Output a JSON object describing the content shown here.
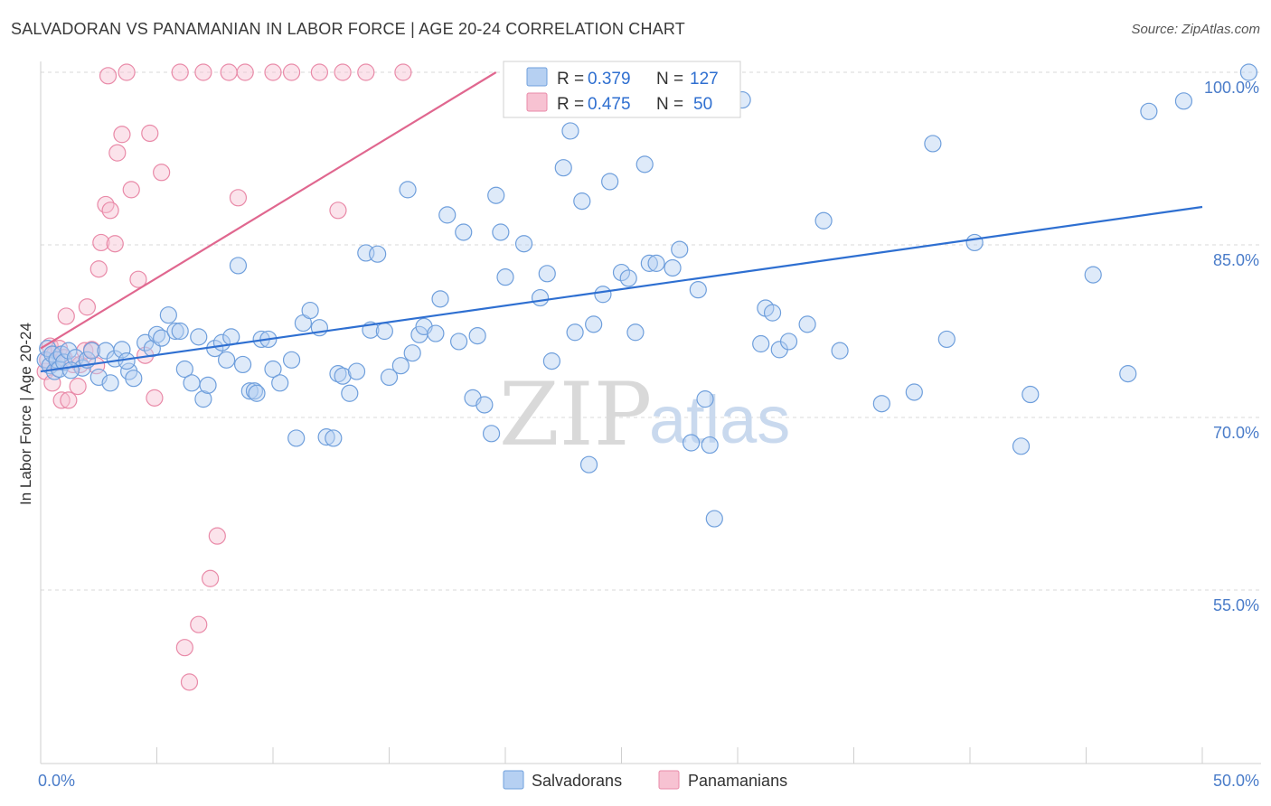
{
  "title": "SALVADORAN VS PANAMANIAN IN LABOR FORCE | AGE 20-24 CORRELATION CHART",
  "source": "Source: ZipAtlas.com",
  "watermark": {
    "zip": "ZIP",
    "atlas": "atlas"
  },
  "colors": {
    "blue": "#6f9fdc",
    "blue_fill": "#b6d0f2",
    "blue_line": "#2e6fd1",
    "pink": "#e98aa8",
    "pink_fill": "#f7c2d2",
    "pink_line": "#e0678f",
    "grid": "#d8d8d8",
    "tick_label": "#4a7cc9"
  },
  "legend": {
    "rows": [
      {
        "r_label": "R = ",
        "r_value": "0.379",
        "n_label": "N = ",
        "n_value": "127"
      },
      {
        "r_label": "R = ",
        "r_value": "0.475",
        "n_label": "N = ",
        "n_value": "50"
      }
    ]
  },
  "bottom_legend": [
    "Salvadorans",
    "Panamanians"
  ],
  "chart_data": {
    "type": "scatter",
    "title": "SALVADORAN VS PANAMANIAN IN LABOR FORCE | AGE 20-24 CORRELATION CHART",
    "xlabel": "",
    "ylabel": "In Labor Force | Age 20-24",
    "xlim": [
      0,
      50
    ],
    "ylim": [
      40,
      101
    ],
    "x_ticks": [
      "0.0%",
      "50.0%"
    ],
    "y_ticks": [
      {
        "value": 100,
        "label": "100.0%"
      },
      {
        "value": 85,
        "label": "85.0%"
      },
      {
        "value": 70,
        "label": "70.0%"
      },
      {
        "value": 55,
        "label": "55.0%"
      }
    ],
    "grid": true,
    "legend_position": "top-center",
    "series": [
      {
        "name": "Salvadorans",
        "r": 0.379,
        "n": 127,
        "trend": {
          "x": [
            0,
            50
          ],
          "y": [
            74.0,
            88.3
          ]
        },
        "points": [
          [
            0.2,
            75.0
          ],
          [
            0.3,
            76.0
          ],
          [
            0.4,
            74.5
          ],
          [
            0.5,
            75.5
          ],
          [
            0.6,
            74.0
          ],
          [
            0.7,
            75.0
          ],
          [
            0.8,
            74.2
          ],
          [
            0.9,
            75.5
          ],
          [
            1.0,
            74.8
          ],
          [
            1.2,
            75.8
          ],
          [
            1.5,
            75.2
          ],
          [
            1.8,
            74.3
          ],
          [
            2.0,
            75.0
          ],
          [
            2.2,
            75.8
          ],
          [
            2.5,
            73.5
          ],
          [
            2.8,
            75.8
          ],
          [
            3.0,
            73.0
          ],
          [
            3.2,
            75.1
          ],
          [
            3.5,
            75.9
          ],
          [
            3.8,
            74.0
          ],
          [
            4.0,
            73.4
          ],
          [
            4.5,
            76.5
          ],
          [
            4.8,
            76.0
          ],
          [
            5.0,
            77.2
          ],
          [
            5.2,
            76.9
          ],
          [
            5.5,
            78.9
          ],
          [
            5.8,
            77.5
          ],
          [
            6.0,
            77.5
          ],
          [
            6.2,
            74.2
          ],
          [
            6.5,
            73.0
          ],
          [
            6.8,
            77.0
          ],
          [
            7.0,
            71.6
          ],
          [
            7.2,
            72.8
          ],
          [
            7.5,
            76.0
          ],
          [
            7.8,
            76.5
          ],
          [
            8.0,
            75.0
          ],
          [
            8.2,
            77.0
          ],
          [
            8.5,
            83.2
          ],
          [
            8.7,
            74.6
          ],
          [
            9.0,
            72.3
          ],
          [
            9.2,
            72.3
          ],
          [
            9.5,
            76.8
          ],
          [
            9.8,
            76.8
          ],
          [
            10.0,
            74.2
          ],
          [
            10.3,
            73.0
          ],
          [
            10.8,
            75.0
          ],
          [
            11.0,
            68.2
          ],
          [
            11.3,
            78.2
          ],
          [
            11.6,
            79.3
          ],
          [
            12.0,
            77.8
          ],
          [
            12.3,
            68.3
          ],
          [
            12.6,
            68.2
          ],
          [
            12.8,
            73.8
          ],
          [
            13.0,
            73.6
          ],
          [
            13.3,
            72.1
          ],
          [
            13.6,
            74.0
          ],
          [
            14.0,
            84.3
          ],
          [
            14.2,
            77.6
          ],
          [
            14.5,
            84.2
          ],
          [
            14.8,
            77.5
          ],
          [
            15.0,
            73.5
          ],
          [
            15.5,
            74.5
          ],
          [
            15.8,
            89.8
          ],
          [
            16.0,
            75.6
          ],
          [
            16.3,
            77.2
          ],
          [
            16.5,
            77.9
          ],
          [
            17.0,
            77.3
          ],
          [
            17.2,
            80.3
          ],
          [
            17.5,
            87.6
          ],
          [
            18.0,
            76.6
          ],
          [
            18.2,
            86.1
          ],
          [
            18.6,
            71.7
          ],
          [
            18.8,
            77.1
          ],
          [
            19.1,
            71.1
          ],
          [
            19.4,
            68.6
          ],
          [
            19.6,
            89.3
          ],
          [
            19.8,
            86.1
          ],
          [
            20.0,
            82.2
          ],
          [
            20.8,
            85.1
          ],
          [
            21.5,
            80.4
          ],
          [
            21.8,
            82.5
          ],
          [
            22.0,
            74.9
          ],
          [
            22.5,
            91.7
          ],
          [
            22.8,
            94.9
          ],
          [
            23.0,
            77.4
          ],
          [
            23.3,
            88.8
          ],
          [
            23.6,
            65.9
          ],
          [
            23.8,
            78.1
          ],
          [
            24.2,
            80.7
          ],
          [
            24.5,
            90.5
          ],
          [
            25.0,
            82.6
          ],
          [
            25.3,
            82.1
          ],
          [
            25.6,
            77.4
          ],
          [
            26.0,
            92.0
          ],
          [
            26.2,
            83.4
          ],
          [
            26.5,
            83.4
          ],
          [
            27.2,
            83.0
          ],
          [
            27.5,
            84.6
          ],
          [
            28.0,
            67.8
          ],
          [
            28.3,
            81.1
          ],
          [
            28.6,
            71.6
          ],
          [
            28.8,
            67.6
          ],
          [
            29.0,
            61.2
          ],
          [
            30.2,
            97.6
          ],
          [
            31.0,
            76.4
          ],
          [
            31.2,
            79.5
          ],
          [
            31.5,
            79.1
          ],
          [
            31.8,
            75.9
          ],
          [
            32.2,
            76.6
          ],
          [
            33.0,
            78.1
          ],
          [
            33.7,
            87.1
          ],
          [
            34.4,
            75.8
          ],
          [
            36.2,
            71.2
          ],
          [
            37.6,
            72.2
          ],
          [
            38.4,
            93.8
          ],
          [
            39.0,
            76.8
          ],
          [
            40.2,
            85.2
          ],
          [
            42.2,
            67.5
          ],
          [
            42.6,
            72.0
          ],
          [
            45.3,
            82.4
          ],
          [
            46.8,
            73.8
          ],
          [
            47.7,
            96.6
          ],
          [
            49.2,
            97.5
          ],
          [
            52.0,
            100.0
          ],
          [
            1.3,
            74.1
          ],
          [
            3.7,
            74.9
          ],
          [
            9.3,
            72.1
          ]
        ]
      },
      {
        "name": "Panamanians",
        "r": 0.475,
        "n": 50,
        "trend": {
          "x": [
            0,
            19.6
          ],
          "y": [
            76.0,
            100.0
          ]
        },
        "points": [
          [
            0.2,
            74.0
          ],
          [
            0.3,
            75.0
          ],
          [
            0.4,
            76.2
          ],
          [
            0.5,
            73.0
          ],
          [
            0.6,
            75.5
          ],
          [
            0.7,
            74.8
          ],
          [
            0.8,
            76.0
          ],
          [
            0.9,
            71.5
          ],
          [
            1.0,
            75.2
          ],
          [
            1.1,
            78.8
          ],
          [
            1.2,
            71.5
          ],
          [
            1.4,
            74.6
          ],
          [
            1.6,
            72.7
          ],
          [
            1.7,
            74.6
          ],
          [
            1.9,
            75.8
          ],
          [
            2.0,
            79.6
          ],
          [
            2.2,
            75.9
          ],
          [
            2.4,
            74.5
          ],
          [
            2.5,
            82.9
          ],
          [
            2.6,
            85.2
          ],
          [
            2.8,
            88.5
          ],
          [
            2.9,
            99.7
          ],
          [
            3.0,
            88.0
          ],
          [
            3.2,
            85.1
          ],
          [
            3.3,
            93.0
          ],
          [
            3.5,
            94.6
          ],
          [
            3.7,
            100.0
          ],
          [
            3.9,
            89.8
          ],
          [
            4.2,
            82.0
          ],
          [
            4.5,
            75.4
          ],
          [
            4.7,
            94.7
          ],
          [
            4.9,
            71.7
          ],
          [
            5.2,
            91.3
          ],
          [
            6.0,
            100.0
          ],
          [
            6.2,
            50.0
          ],
          [
            6.4,
            47.0
          ],
          [
            6.8,
            52.0
          ],
          [
            7.0,
            100.0
          ],
          [
            7.3,
            56.0
          ],
          [
            7.6,
            59.7
          ],
          [
            8.1,
            100.0
          ],
          [
            8.5,
            89.1
          ],
          [
            8.8,
            100.0
          ],
          [
            10.0,
            100.0
          ],
          [
            10.8,
            100.0
          ],
          [
            12.0,
            100.0
          ],
          [
            12.8,
            88.0
          ],
          [
            13.0,
            100.0
          ],
          [
            14.0,
            100.0
          ],
          [
            15.6,
            100.0
          ]
        ]
      }
    ]
  }
}
